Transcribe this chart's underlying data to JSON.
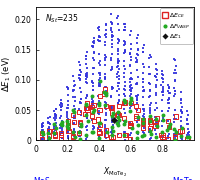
{
  "title_annotation": "N_{St}=235",
  "xlim": [
    0,
    1.0
  ],
  "ylim": [
    0,
    0.22
  ],
  "xticks": [
    0,
    0.2,
    0.4,
    0.6,
    0.8
  ],
  "yticks": [
    0,
    0.05,
    0.1,
    0.15,
    0.2
  ],
  "background_color": "#ffffff",
  "blue_color": "#3333dd",
  "red_color": "#dd2222",
  "green_color": "#22aa22",
  "black_color": "#111111",
  "x_centers": [
    0.04,
    0.08,
    0.12,
    0.16,
    0.2,
    0.24,
    0.28,
    0.32,
    0.36,
    0.4,
    0.44,
    0.48,
    0.52,
    0.56,
    0.6,
    0.64,
    0.68,
    0.72,
    0.76,
    0.8,
    0.84,
    0.88,
    0.92,
    0.96
  ],
  "blue_max": [
    0.03,
    0.04,
    0.055,
    0.07,
    0.09,
    0.11,
    0.13,
    0.15,
    0.17,
    0.19,
    0.2,
    0.21,
    0.205,
    0.195,
    0.185,
    0.175,
    0.16,
    0.145,
    0.13,
    0.115,
    0.1,
    0.135,
    0.08,
    0.05
  ],
  "blue_n": [
    18,
    20,
    22,
    24,
    26,
    28,
    30,
    32,
    35,
    38,
    40,
    42,
    40,
    38,
    36,
    34,
    30,
    28,
    25,
    22,
    20,
    25,
    18,
    14
  ],
  "red_x_centers": [
    0.04,
    0.08,
    0.12,
    0.16,
    0.2,
    0.24,
    0.28,
    0.32,
    0.36,
    0.4,
    0.44,
    0.48,
    0.52,
    0.56,
    0.6,
    0.64,
    0.68,
    0.72,
    0.76,
    0.8,
    0.84,
    0.88,
    0.92,
    0.96
  ],
  "red_max": [
    0.015,
    0.018,
    0.022,
    0.028,
    0.035,
    0.05,
    0.055,
    0.065,
    0.075,
    0.095,
    0.085,
    0.055,
    0.06,
    0.065,
    0.065,
    0.06,
    0.055,
    0.05,
    0.045,
    0.038,
    0.032,
    0.042,
    0.025,
    0.012
  ],
  "red_n": [
    2,
    2,
    3,
    3,
    4,
    4,
    4,
    5,
    5,
    6,
    5,
    5,
    5,
    5,
    5,
    4,
    4,
    4,
    3,
    3,
    3,
    3,
    2,
    2
  ],
  "green_x_centers": [
    0.04,
    0.08,
    0.12,
    0.16,
    0.2,
    0.24,
    0.28,
    0.32,
    0.36,
    0.4,
    0.44,
    0.48,
    0.52,
    0.56,
    0.6,
    0.64,
    0.68,
    0.72,
    0.76,
    0.8,
    0.84,
    0.88,
    0.92,
    0.96
  ],
  "green_max": [
    0.018,
    0.022,
    0.028,
    0.032,
    0.038,
    0.055,
    0.06,
    0.068,
    0.08,
    0.1,
    0.088,
    0.058,
    0.065,
    0.068,
    0.07,
    0.065,
    0.058,
    0.052,
    0.048,
    0.042,
    0.035,
    0.045,
    0.028,
    0.014
  ],
  "green_n": [
    2,
    2,
    3,
    3,
    4,
    4,
    4,
    5,
    5,
    6,
    5,
    5,
    5,
    5,
    5,
    4,
    4,
    4,
    3,
    3,
    3,
    3,
    2,
    2
  ],
  "black_x": [
    0.495
  ],
  "black_y": [
    0.033
  ]
}
